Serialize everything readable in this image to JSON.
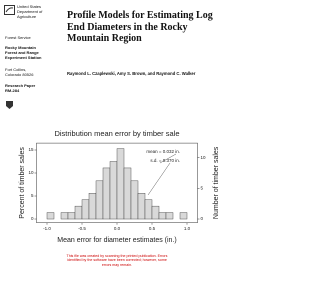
{
  "header": {
    "agency": "United States Department of Agriculture",
    "service": "Forest Service",
    "station": "Rocky Mountain Forest and Range Experiment Station",
    "location": "Fort Collins, Colorado 80526",
    "series": "Research Paper RM-284",
    "title": "Profile Models for Estimating Log End Diameters in the Rocky Mountain Region",
    "authors": "Raymond L. Czaplewski, Amy S. Brown, and Raymond C. Walker"
  },
  "chart_data": {
    "type": "histogram",
    "title": "Distribution mean error by timber sale",
    "xlabel": "Mean error for diameter estimates (in.)",
    "ylabel": "Percent of timber sales",
    "y2label": "Number of timber sales",
    "bins": [
      -1.0,
      -0.9,
      -0.8,
      -0.7,
      -0.6,
      -0.5,
      -0.4,
      -0.3,
      -0.2,
      -0.1,
      0.0,
      0.1,
      0.2,
      0.3,
      0.4,
      0.5,
      0.6,
      0.7,
      0.8,
      0.9,
      1.0
    ],
    "values": [
      1.4,
      0,
      1.4,
      1.4,
      2.8,
      4.2,
      5.6,
      8.3,
      11.1,
      12.5,
      15.3,
      11.1,
      8.3,
      5.6,
      4.2,
      2.8,
      1.4,
      1.4,
      0,
      1.4
    ],
    "color": "#d9d9d9",
    "xlim": [
      -1.15,
      1.15
    ],
    "xticks": [
      {
        "value": -1,
        "label": "-1.0"
      },
      -0.5,
      {
        "value": 0,
        "label": "0.0"
      },
      0.5,
      {
        "value": 1,
        "label": "1.0"
      }
    ],
    "ylim": [
      -0.8,
      16.5
    ],
    "yticks": [
      0,
      5,
      10,
      15
    ],
    "y2lim": [
      -0.6,
      12.375
    ],
    "y2ticks": [
      0,
      5,
      10
    ],
    "annotations": [
      "mean = 0.032 in.",
      "s.d. = 0.370 in."
    ]
  },
  "footer": {
    "note": "This file was created by scanning the printed publication. Errors identified by the software have been corrected; however, some errors may remain."
  }
}
